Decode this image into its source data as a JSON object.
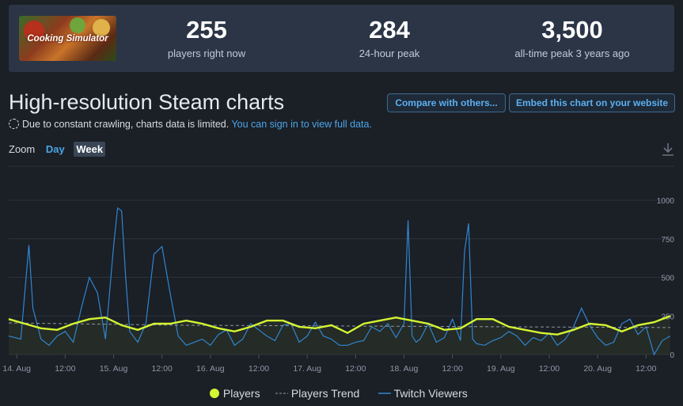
{
  "header": {
    "game_logo_text": "Cooking Simulator",
    "stats": [
      {
        "value": "255",
        "label": "players right now"
      },
      {
        "value": "284",
        "label": "24-hour peak"
      },
      {
        "value": "3,500",
        "label": "all-time peak 3 years ago"
      }
    ]
  },
  "page": {
    "title": "High-resolution Steam charts",
    "compare_button": "Compare with others...",
    "embed_button": "Embed this chart on your website",
    "notice_text": "Due to constant crawling, charts data is limited.",
    "notice_link": "You can sign in to view full data.",
    "zoom_label": "Zoom",
    "zoom_day": "Day",
    "zoom_week": "Week",
    "download_icon": "download-icon"
  },
  "colors": {
    "players": "#d4f532",
    "trend": "#8f98a6",
    "twitch": "#2f86d1",
    "background": "#1b1f26",
    "grid": "#2c323b"
  },
  "chart_data": {
    "type": "line",
    "title": "",
    "ylim": [
      0,
      1000
    ],
    "y_ticks": [
      0,
      250,
      500,
      750,
      1000
    ],
    "x_ticks": [
      "14. Aug",
      "12:00",
      "15. Aug",
      "12:00",
      "16. Aug",
      "12:00",
      "17. Aug",
      "12:00",
      "18. Aug",
      "12:00",
      "19. Aug",
      "12:00",
      "20. Aug",
      "12:00"
    ],
    "x_tick_hours": [
      0,
      12,
      24,
      36,
      48,
      60,
      72,
      84,
      96,
      108,
      120,
      132,
      144,
      156
    ],
    "x_range_hours": [
      -2,
      163
    ],
    "grid": true,
    "legend": "bottom-center",
    "series": [
      {
        "name": "Players",
        "x_hours": [
          -2,
          2,
          6,
          10,
          14,
          18,
          22,
          26,
          30,
          34,
          38,
          42,
          46,
          50,
          54,
          58,
          62,
          66,
          70,
          74,
          78,
          82,
          86,
          90,
          94,
          98,
          102,
          106,
          110,
          114,
          118,
          122,
          126,
          130,
          134,
          138,
          142,
          146,
          150,
          154,
          158,
          162
        ],
        "values": [
          230,
          200,
          170,
          160,
          200,
          230,
          240,
          190,
          160,
          200,
          200,
          220,
          200,
          170,
          150,
          180,
          220,
          220,
          180,
          170,
          190,
          140,
          200,
          220,
          240,
          220,
          200,
          160,
          170,
          230,
          230,
          180,
          160,
          140,
          130,
          160,
          200,
          190,
          150,
          190,
          210,
          250
        ]
      },
      {
        "name": "Players Trend",
        "x_hours": [
          -2,
          40,
          80,
          120,
          162
        ],
        "values": [
          205,
          190,
          185,
          180,
          175
        ]
      },
      {
        "name": "Twitch Viewers",
        "x_hours": [
          -2,
          1,
          3,
          4,
          6,
          8,
          10,
          12,
          14,
          16,
          18,
          20,
          22,
          24,
          25,
          26,
          27,
          28,
          30,
          32,
          34,
          36,
          38,
          40,
          42,
          44,
          46,
          48,
          50,
          52,
          54,
          56,
          58,
          60,
          62,
          64,
          66,
          68,
          70,
          72,
          74,
          76,
          78,
          80,
          82,
          84,
          86,
          88,
          90,
          92,
          94,
          96,
          97,
          98,
          99,
          100,
          102,
          104,
          106,
          108,
          110,
          111,
          112,
          113,
          114,
          116,
          118,
          120,
          122,
          124,
          126,
          128,
          130,
          132,
          134,
          136,
          138,
          140,
          142,
          144,
          146,
          148,
          150,
          152,
          154,
          156,
          158,
          160,
          162
        ],
        "values": [
          120,
          100,
          710,
          300,
          100,
          60,
          120,
          150,
          80,
          300,
          500,
          400,
          100,
          700,
          950,
          930,
          500,
          150,
          80,
          200,
          650,
          700,
          400,
          120,
          60,
          80,
          100,
          60,
          130,
          160,
          60,
          100,
          200,
          160,
          120,
          90,
          190,
          200,
          80,
          120,
          210,
          120,
          100,
          60,
          60,
          80,
          90,
          180,
          150,
          200,
          110,
          200,
          870,
          120,
          80,
          100,
          200,
          80,
          110,
          230,
          90,
          670,
          850,
          100,
          70,
          60,
          90,
          110,
          150,
          120,
          60,
          110,
          90,
          140,
          60,
          100,
          180,
          300,
          190,
          110,
          60,
          80,
          200,
          230,
          130,
          180,
          0,
          90,
          120
        ]
      }
    ]
  }
}
